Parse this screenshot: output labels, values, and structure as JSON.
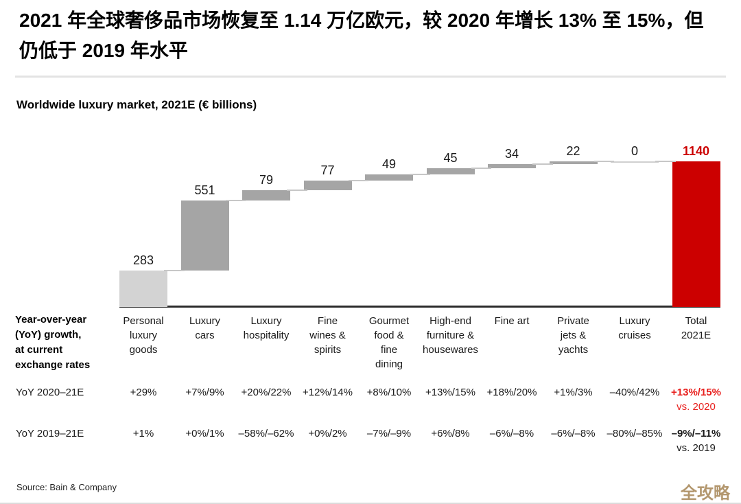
{
  "header": {
    "title_zh": "2021 年全球奢侈品市场恢复至 1.14 万亿欧元，较 2020 年增长 13% 至 15%，但仍低于 2019 年水平"
  },
  "chart_data": {
    "type": "bar",
    "subtype": "waterfall",
    "title": "Worldwide luxury market, 2021E (€ billions)",
    "categories": [
      "Personal\nluxury\ngoods",
      "Luxury\ncars",
      "Luxury\nhospitality",
      "Fine\nwines &\nspirits",
      "Gourmet\nfood &\nfine\ndining",
      "High-end\nfurniture &\nhousewares",
      "Fine art",
      "Private\njets &\nyachts",
      "Luxury\ncruises",
      "Total\n2021E"
    ],
    "values": [
      283,
      551,
      79,
      77,
      49,
      45,
      34,
      22,
      0,
      1140
    ],
    "total_index": 9,
    "ylim": [
      0,
      1140
    ],
    "legend": "none",
    "grid": false,
    "colors": {
      "first_bar": "#d3d3d3",
      "bar": "#a5a5a5",
      "zero_bar": "#d0d0d0",
      "total_bar": "#cc0000",
      "connector": "#c7c7c7",
      "axis": "#2b2b2b",
      "total_label": "#cc0000"
    }
  },
  "table": {
    "row_header": "Year-over-year\n(YoY) growth,\nat current\nexchange rates",
    "rows": [
      {
        "label": "YoY 2020–21E",
        "values": [
          "+29%",
          "+7%/9%",
          "+20%/22%",
          "+12%/14%",
          "+8%/10%",
          "+13%/15%",
          "+18%/20%",
          "+1%/3%",
          "–40%/42%"
        ],
        "total_value": "+13%/15%",
        "total_note": "vs. 2020",
        "emphasis_color": "#e8201e"
      },
      {
        "label": "YoY 2019–21E",
        "values": [
          "+1%",
          "+0%/1%",
          "–58%/–62%",
          "+0%/2%",
          "–7%/–9%",
          "+6%/8%",
          "–6%/–8%",
          "–6%/–8%",
          "–80%/–85%"
        ],
        "total_value": "–9%/–11%",
        "total_note": "vs. 2019",
        "emphasis_color": "#1a1a1a"
      }
    ]
  },
  "footer": {
    "source": "Source: Bain & Company",
    "watermark": "全攻略"
  }
}
